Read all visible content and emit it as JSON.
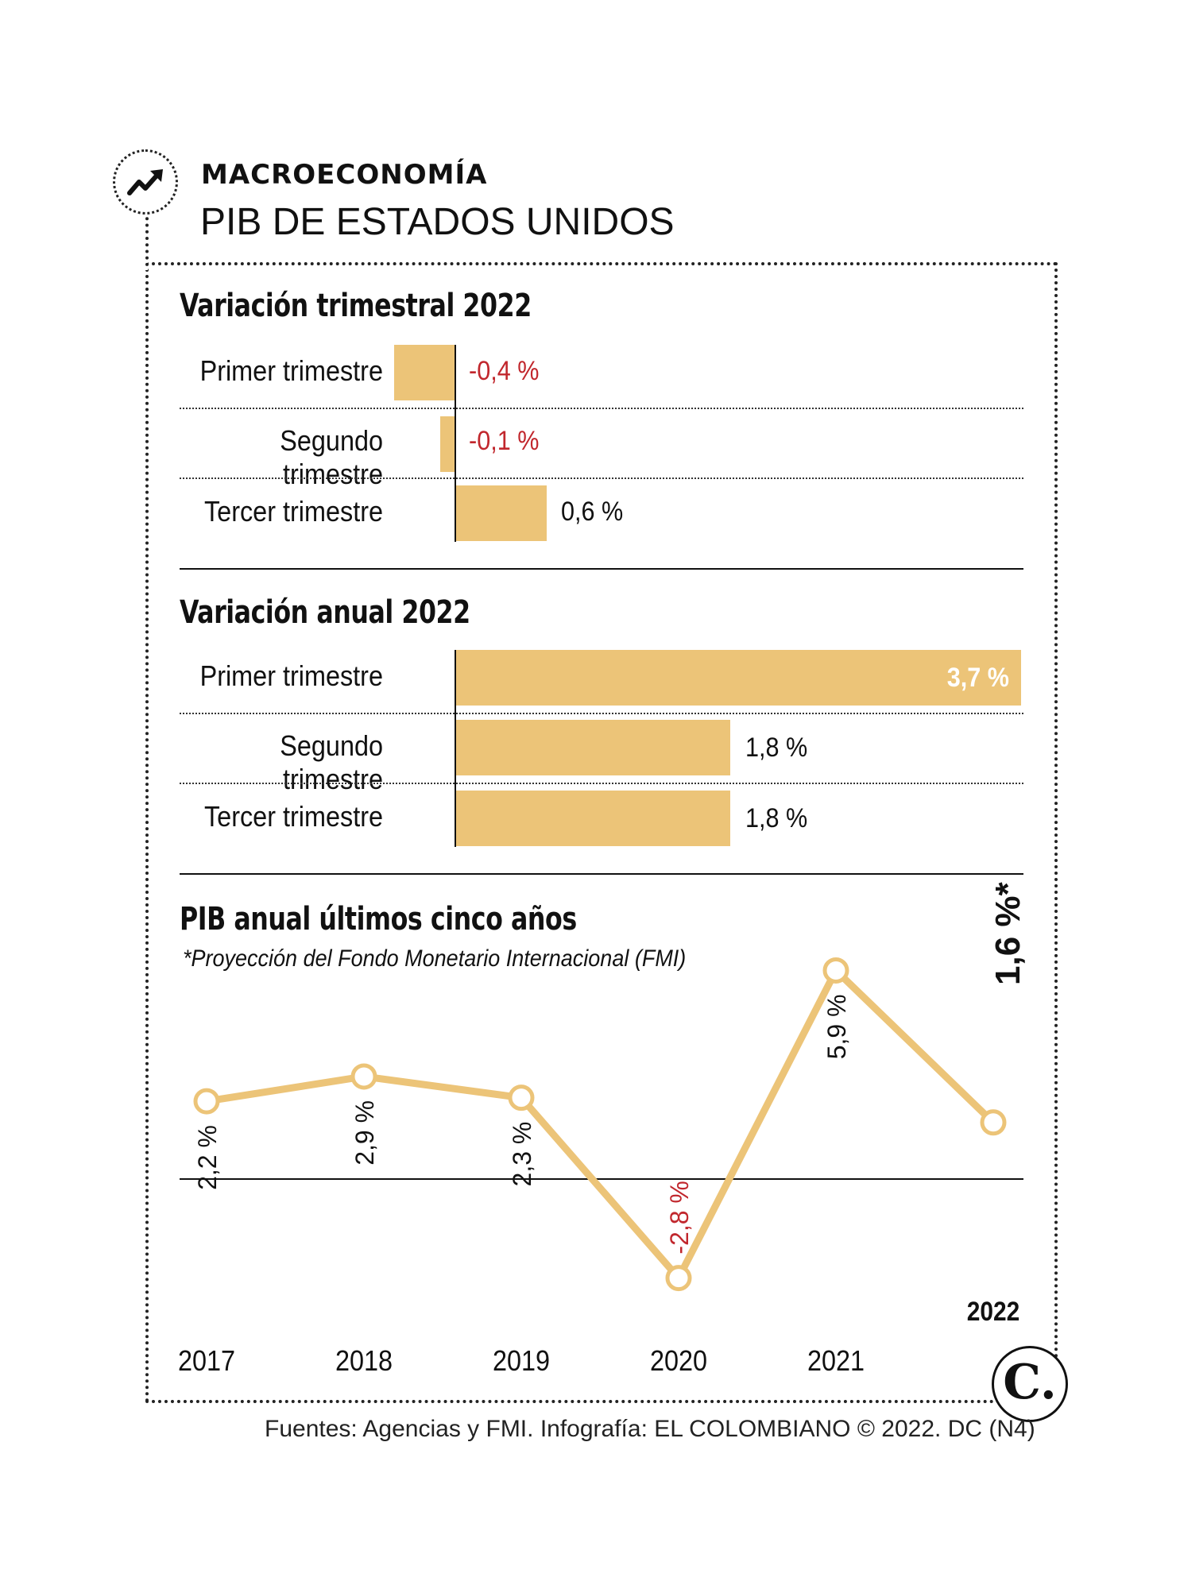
{
  "header": {
    "kicker": "MACROECONOMÍA",
    "title": "PIB DE ESTADOS UNIDOS",
    "icon": "trend-up-arrow-icon"
  },
  "colors": {
    "bar": "#ecc478",
    "negative": "#c1272d",
    "text": "#111111"
  },
  "chart_data": [
    {
      "type": "bar",
      "title": "Variación trimestral 2022",
      "categories": [
        "Primer trimestre",
        "Segundo trimestre",
        "Tercer trimestre"
      ],
      "values": [
        -0.4,
        -0.1,
        0.6
      ],
      "labels": [
        "-0,4 %",
        "-0,1 %",
        "0,6 %"
      ],
      "orientation": "horizontal"
    },
    {
      "type": "bar",
      "title": "Variación anual 2022",
      "categories": [
        "Primer trimestre",
        "Segundo trimestre",
        "Tercer trimestre"
      ],
      "values": [
        3.7,
        1.8,
        1.8
      ],
      "labels": [
        "3,7 %",
        "1,8 %",
        "1,8 %"
      ],
      "orientation": "horizontal"
    },
    {
      "type": "line",
      "title": "PIB anual últimos cinco años",
      "note": "*Proyección del Fondo Monetario Internacional (FMI)",
      "x": [
        "2017",
        "2018",
        "2019",
        "2020",
        "2021",
        "2022"
      ],
      "values": [
        2.2,
        2.9,
        2.3,
        -2.8,
        5.9,
        1.6
      ],
      "labels": [
        "2,2 %",
        "2,9 %",
        "2,3 %",
        "-2,8 %",
        "5,9 %",
        "1,6 %*"
      ],
      "grid": false
    }
  ],
  "footer": {
    "source": "Fuentes: Agencias y FMI. Infografía: EL COLOMBIANO © 2022. DC (N4)",
    "logo": "C."
  }
}
